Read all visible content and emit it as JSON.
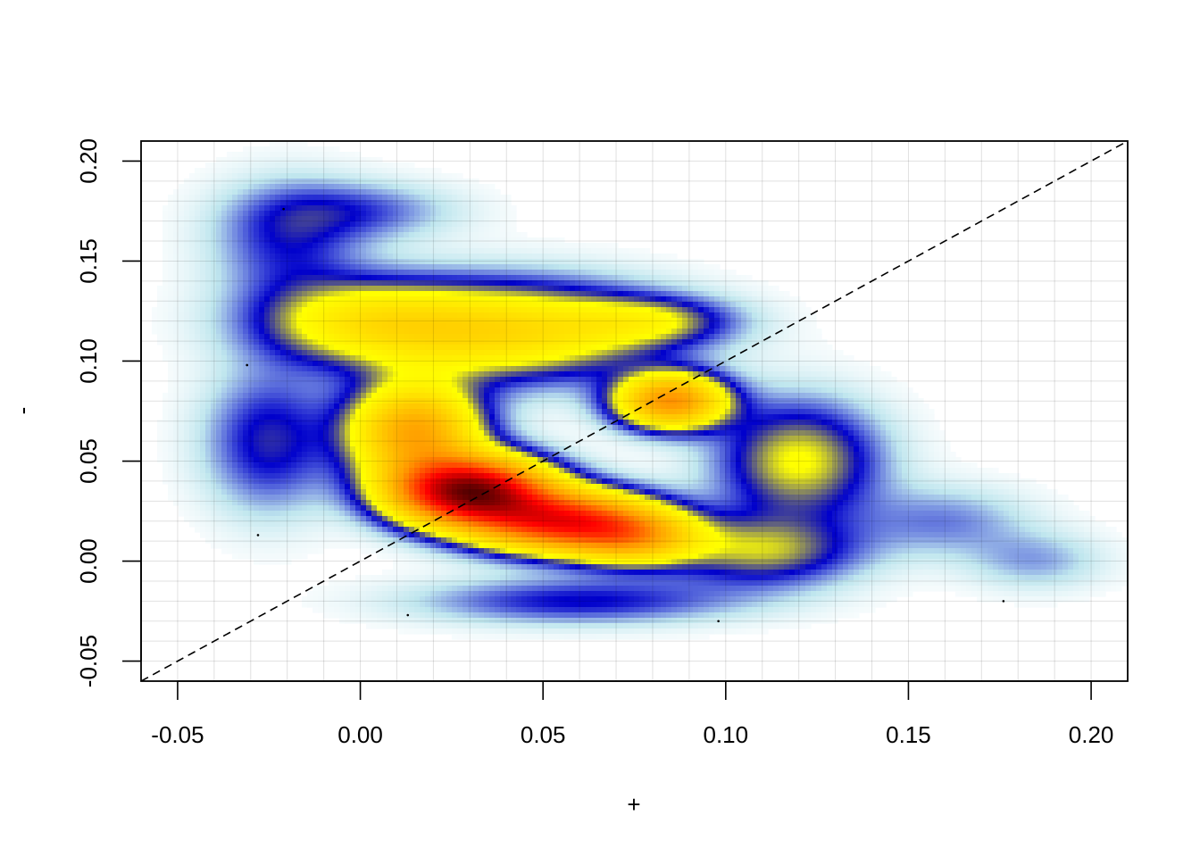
{
  "chart_data": {
    "type": "heatmap",
    "title": "",
    "xlabel": "+",
    "ylabel": "-",
    "xlim": [
      -0.06,
      0.21
    ],
    "ylim": [
      -0.06,
      0.21
    ],
    "x_ticks": [
      "-0.05",
      "0.00",
      "0.05",
      "0.10",
      "0.15",
      "0.20"
    ],
    "x_tick_values": [
      -0.05,
      0.0,
      0.05,
      0.1,
      0.15,
      0.2
    ],
    "y_ticks": [
      "-0.05",
      "0.00",
      "0.05",
      "0.10",
      "0.15",
      "0.20"
    ],
    "y_tick_values": [
      -0.05,
      0.0,
      0.05,
      0.1,
      0.15,
      0.2
    ],
    "grid": true,
    "reference_line": {
      "type": "identity",
      "style": "dashed",
      "color": "#000000"
    },
    "color_scale": [
      "#ffffff",
      "#bfe6ee",
      "#0000cc",
      "#ffff00",
      "#ff9900",
      "#ff0000",
      "#550000"
    ],
    "density_components": [
      {
        "x": 0.03,
        "y": 0.035,
        "weight": 1.0,
        "sx": 0.014,
        "sy": 0.011
      },
      {
        "x": 0.055,
        "y": 0.02,
        "weight": 0.7,
        "sx": 0.016,
        "sy": 0.01
      },
      {
        "x": 0.015,
        "y": 0.065,
        "weight": 0.45,
        "sx": 0.012,
        "sy": 0.016
      },
      {
        "x": 0.085,
        "y": 0.08,
        "weight": 0.5,
        "sx": 0.01,
        "sy": 0.009
      },
      {
        "x": 0.075,
        "y": 0.012,
        "weight": 0.35,
        "sx": 0.012,
        "sy": 0.009
      },
      {
        "x": 0.04,
        "y": 0.115,
        "weight": 0.28,
        "sx": 0.028,
        "sy": 0.016
      },
      {
        "x": 0.0,
        "y": 0.12,
        "weight": 0.18,
        "sx": 0.02,
        "sy": 0.014
      },
      {
        "x": 0.0,
        "y": 0.175,
        "weight": 0.07,
        "sx": 0.018,
        "sy": 0.01
      },
      {
        "x": -0.02,
        "y": 0.16,
        "weight": 0.09,
        "sx": 0.014,
        "sy": 0.02
      },
      {
        "x": 0.12,
        "y": 0.05,
        "weight": 0.18,
        "sx": 0.015,
        "sy": 0.02
      },
      {
        "x": 0.11,
        "y": 0.005,
        "weight": 0.15,
        "sx": 0.018,
        "sy": 0.012
      },
      {
        "x": 0.16,
        "y": 0.02,
        "weight": 0.06,
        "sx": 0.016,
        "sy": 0.012
      },
      {
        "x": 0.185,
        "y": 0.0,
        "weight": 0.05,
        "sx": 0.013,
        "sy": 0.01
      },
      {
        "x": -0.025,
        "y": 0.06,
        "weight": 0.11,
        "sx": 0.012,
        "sy": 0.024
      },
      {
        "x": 0.06,
        "y": -0.02,
        "weight": 0.1,
        "sx": 0.03,
        "sy": 0.008
      },
      {
        "x": 0.08,
        "y": 0.12,
        "weight": 0.12,
        "sx": 0.015,
        "sy": 0.008
      }
    ],
    "outlier_points": [
      {
        "x": -0.021,
        "y": 0.176
      },
      {
        "x": -0.031,
        "y": 0.098
      },
      {
        "x": -0.028,
        "y": 0.013
      },
      {
        "x": 0.013,
        "y": -0.027
      },
      {
        "x": 0.098,
        "y": -0.03
      },
      {
        "x": 0.176,
        "y": -0.02
      }
    ]
  }
}
